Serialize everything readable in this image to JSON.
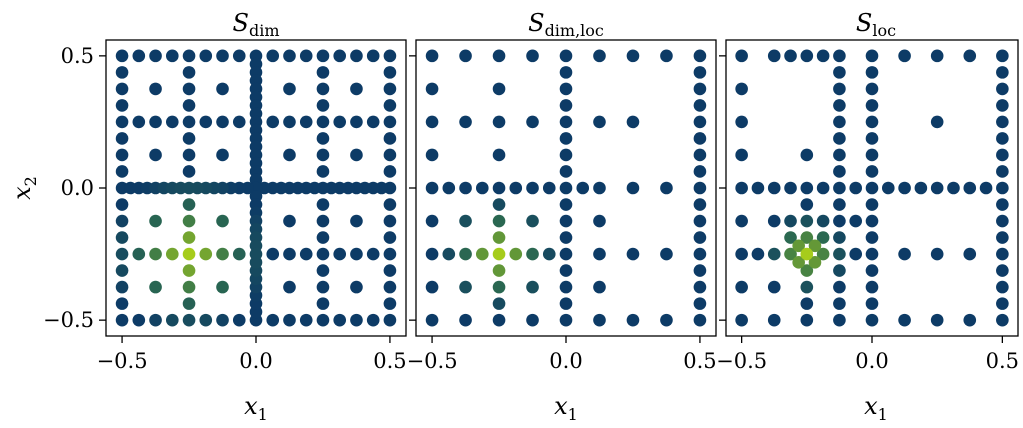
{
  "chart_data": {
    "type": "scatter",
    "ylabel": {
      "main": "x",
      "sub": "2"
    },
    "panels": [
      {
        "id": "dim",
        "title_main": "S",
        "title_sub": "dim",
        "xlabel": {
          "main": "x",
          "sub": "1"
        },
        "xlim": [
          -0.56,
          0.56
        ],
        "ylim": [
          -0.56,
          0.56
        ],
        "xticks": [
          -0.5,
          0.0,
          0.5
        ],
        "xtick_labels": [
          "−0.5",
          "0.0",
          "0.5"
        ],
        "yticks": [
          -0.5,
          0.0,
          0.5
        ],
        "ytick_labels": [
          "−0.5",
          "0.0",
          "0.5"
        ],
        "show_ytick_labels": true,
        "grid": false,
        "color_scale": {
          "low": "#0d3b66",
          "mid": "#2e6e4e",
          "high": "#a6cc1b"
        },
        "rules": [
          {
            "kind": "uniform",
            "step": 0.125
          },
          {
            "kind": "line_x",
            "at": 0.0,
            "step": 0.0625,
            "span": [
              -0.5,
              0.5
            ]
          },
          {
            "kind": "line_y",
            "at": 0.0,
            "step": 0.0625,
            "span": [
              -0.5,
              0.5
            ]
          },
          {
            "kind": "line_x",
            "at": 0.25,
            "step": 0.0625,
            "span": [
              -0.5,
              0.5
            ]
          },
          {
            "kind": "line_x",
            "at": -0.25,
            "step": 0.0625,
            "span": [
              -0.5,
              0.5
            ]
          },
          {
            "kind": "line_y",
            "at": 0.25,
            "step": 0.0625,
            "span": [
              -0.5,
              0.5
            ]
          },
          {
            "kind": "line_y",
            "at": -0.25,
            "step": 0.0625,
            "span": [
              -0.5,
              0.5
            ]
          },
          {
            "kind": "line_x",
            "at": 0.5,
            "step": 0.0625,
            "span": [
              -0.5,
              0.5
            ]
          },
          {
            "kind": "line_x",
            "at": -0.5,
            "step": 0.0625,
            "span": [
              -0.5,
              0.5
            ]
          },
          {
            "kind": "line_y",
            "at": 0.5,
            "step": 0.0625,
            "span": [
              -0.5,
              0.5
            ]
          },
          {
            "kind": "line_y",
            "at": -0.5,
            "step": 0.0625,
            "span": [
              -0.5,
              0.5
            ]
          }
        ],
        "dense_center_lines": [
          {
            "kind": "line_x",
            "at": 0.0,
            "step": 0.03125,
            "span": [
              -0.5,
              0.5
            ]
          },
          {
            "kind": "line_y",
            "at": 0.0,
            "step": 0.03125,
            "span": [
              -0.5,
              0.5
            ]
          }
        ],
        "hotspot": {
          "x": -0.25,
          "y": -0.25,
          "radius": 0.3
        }
      },
      {
        "id": "dimloc",
        "title_main": "S",
        "title_sub": "dim,loc",
        "xlabel": {
          "main": "x",
          "sub": "1"
        },
        "xlim": [
          -0.56,
          0.56
        ],
        "ylim": [
          -0.56,
          0.56
        ],
        "xticks": [
          -0.5,
          0.0,
          0.5
        ],
        "xtick_labels": [
          "−0.5",
          "0.0",
          "0.5"
        ],
        "yticks": [
          -0.5,
          0.0,
          0.5
        ],
        "ytick_labels": [],
        "show_ytick_labels": false,
        "grid": false,
        "color_scale": {
          "low": "#0d3b66",
          "mid": "#2e6e4e",
          "high": "#a6cc1b"
        },
        "rules": [
          {
            "kind": "line_y",
            "at": 0.5,
            "step": 0.125,
            "span": [
              -0.5,
              0.5
            ]
          },
          {
            "kind": "line_y",
            "at": -0.5,
            "step": 0.125,
            "span": [
              -0.5,
              0.5
            ]
          },
          {
            "kind": "line_x",
            "at": -0.5,
            "step": 0.125,
            "span": [
              -0.5,
              0.5
            ]
          },
          {
            "kind": "line_x",
            "at": 0.5,
            "step": 0.0625,
            "span": [
              -0.5,
              0.5
            ]
          },
          {
            "kind": "line_x",
            "at": 0.0,
            "step": 0.0625,
            "span": [
              -0.5,
              0.5
            ]
          },
          {
            "kind": "line_y",
            "at": 0.0,
            "step": 0.0625,
            "span": [
              -0.5,
              0.0
            ]
          },
          {
            "kind": "line_y",
            "at": 0.0,
            "step": 0.125,
            "span": [
              0.0,
              0.5
            ]
          },
          {
            "kind": "line_y",
            "at": -0.25,
            "step": 0.0625,
            "span": [
              -0.5,
              0.0
            ]
          },
          {
            "kind": "line_y",
            "at": -0.25,
            "step": 0.125,
            "span": [
              0.0,
              0.5
            ]
          },
          {
            "kind": "line_x",
            "at": -0.25,
            "step": 0.0625,
            "span": [
              -0.5,
              0.0
            ]
          },
          {
            "kind": "line_x",
            "at": -0.25,
            "step": 0.125,
            "span": [
              0.0,
              0.5
            ]
          },
          {
            "kind": "line_y",
            "at": 0.25,
            "step": 0.125,
            "span": [
              -0.5,
              0.0
            ]
          },
          {
            "kind": "points",
            "pts": [
              [
                -0.25,
                0.25
              ],
              [
                -0.125,
                0.25
              ],
              [
                -0.25,
                0.125
              ],
              [
                0.25,
                0.25
              ],
              [
                0.125,
                0.25
              ],
              [
                0.25,
                -0.25
              ],
              [
                0.125,
                -0.25
              ],
              [
                -0.375,
                -0.125
              ],
              [
                -0.125,
                -0.125
              ],
              [
                -0.375,
                -0.375
              ],
              [
                -0.125,
                -0.375
              ],
              [
                -0.25,
                0.375
              ],
              [
                0.125,
                -0.125
              ],
              [
                0.125,
                -0.375
              ],
              [
                -0.1875,
                -0.25
              ],
              [
                -0.25,
                -0.1875
              ],
              [
                0.0625,
                0.0
              ]
            ]
          }
        ],
        "dense_center_lines": [],
        "hotspot": {
          "x": -0.25,
          "y": -0.25,
          "radius": 0.22
        }
      },
      {
        "id": "loc",
        "title_main": "S",
        "title_sub": "loc",
        "xlabel": {
          "main": "x",
          "sub": "1"
        },
        "xlim": [
          -0.56,
          0.56
        ],
        "ylim": [
          -0.56,
          0.56
        ],
        "xticks": [
          -0.5,
          0.0,
          0.5
        ],
        "xtick_labels": [
          "−0.5",
          "0.0",
          "0.5"
        ],
        "yticks": [
          -0.5,
          0.0,
          0.5
        ],
        "ytick_labels": [],
        "show_ytick_labels": false,
        "grid": false,
        "color_scale": {
          "low": "#0d3b66",
          "mid": "#2e6e4e",
          "high": "#a6cc1b"
        },
        "rules": [
          {
            "kind": "line_y",
            "at": 0.5,
            "step": 0.125,
            "span": [
              -0.5,
              0.5
            ]
          },
          {
            "kind": "line_y",
            "at": -0.5,
            "step": 0.125,
            "span": [
              -0.5,
              0.5
            ]
          },
          {
            "kind": "line_x",
            "at": -0.5,
            "step": 0.125,
            "span": [
              -0.5,
              0.5
            ]
          },
          {
            "kind": "line_x",
            "at": 0.5,
            "step": 0.0625,
            "span": [
              -0.5,
              0.5
            ]
          },
          {
            "kind": "line_x",
            "at": 0.0,
            "step": 0.0625,
            "span": [
              -0.5,
              0.5
            ]
          },
          {
            "kind": "line_y",
            "at": 0.0,
            "step": 0.0625,
            "span": [
              -0.5,
              0.5
            ]
          },
          {
            "kind": "line_x",
            "at": -0.125,
            "step": 0.0625,
            "span": [
              -0.5,
              0.5
            ]
          },
          {
            "kind": "line_x",
            "at": -0.25,
            "step": 0.0625,
            "span": [
              -0.5,
              0.0
            ]
          },
          {
            "kind": "line_y",
            "at": -0.25,
            "step": 0.0625,
            "span": [
              -0.5,
              0.0
            ]
          },
          {
            "kind": "line_y",
            "at": -0.125,
            "step": 0.0625,
            "span": [
              -0.375,
              0.0
            ]
          },
          {
            "kind": "points",
            "pts": [
              [
                -0.375,
                0.5
              ],
              [
                -0.3125,
                0.5
              ],
              [
                -0.25,
                0.5
              ],
              [
                -0.1875,
                0.5
              ],
              [
                -0.125,
                0.5
              ],
              [
                0.25,
                0.25
              ],
              [
                0.25,
                -0.25
              ],
              [
                0.125,
                -0.25
              ],
              [
                0.375,
                -0.25
              ],
              [
                0.5,
                -0.1875
              ],
              [
                0.5,
                -0.3125
              ],
              [
                0.375,
                0.0
              ],
              [
                -0.375,
                -0.125
              ],
              [
                -0.375,
                -0.375
              ],
              [
                -0.25,
                0.125
              ],
              [
                -0.3125,
                -0.25
              ],
              [
                -0.1875,
                -0.25
              ],
              [
                -0.21875,
                -0.21875
              ],
              [
                -0.28125,
                -0.21875
              ],
              [
                -0.21875,
                -0.28125
              ],
              [
                -0.28125,
                -0.28125
              ],
              [
                -0.1875,
                -0.1875
              ],
              [
                -0.3125,
                -0.1875
              ],
              [
                0.125,
                0.0
              ],
              [
                0.0625,
                0.0
              ]
            ]
          }
        ],
        "dense_center_lines": [],
        "hotspot": {
          "x": -0.25,
          "y": -0.25,
          "radius": 0.16
        }
      }
    ]
  }
}
